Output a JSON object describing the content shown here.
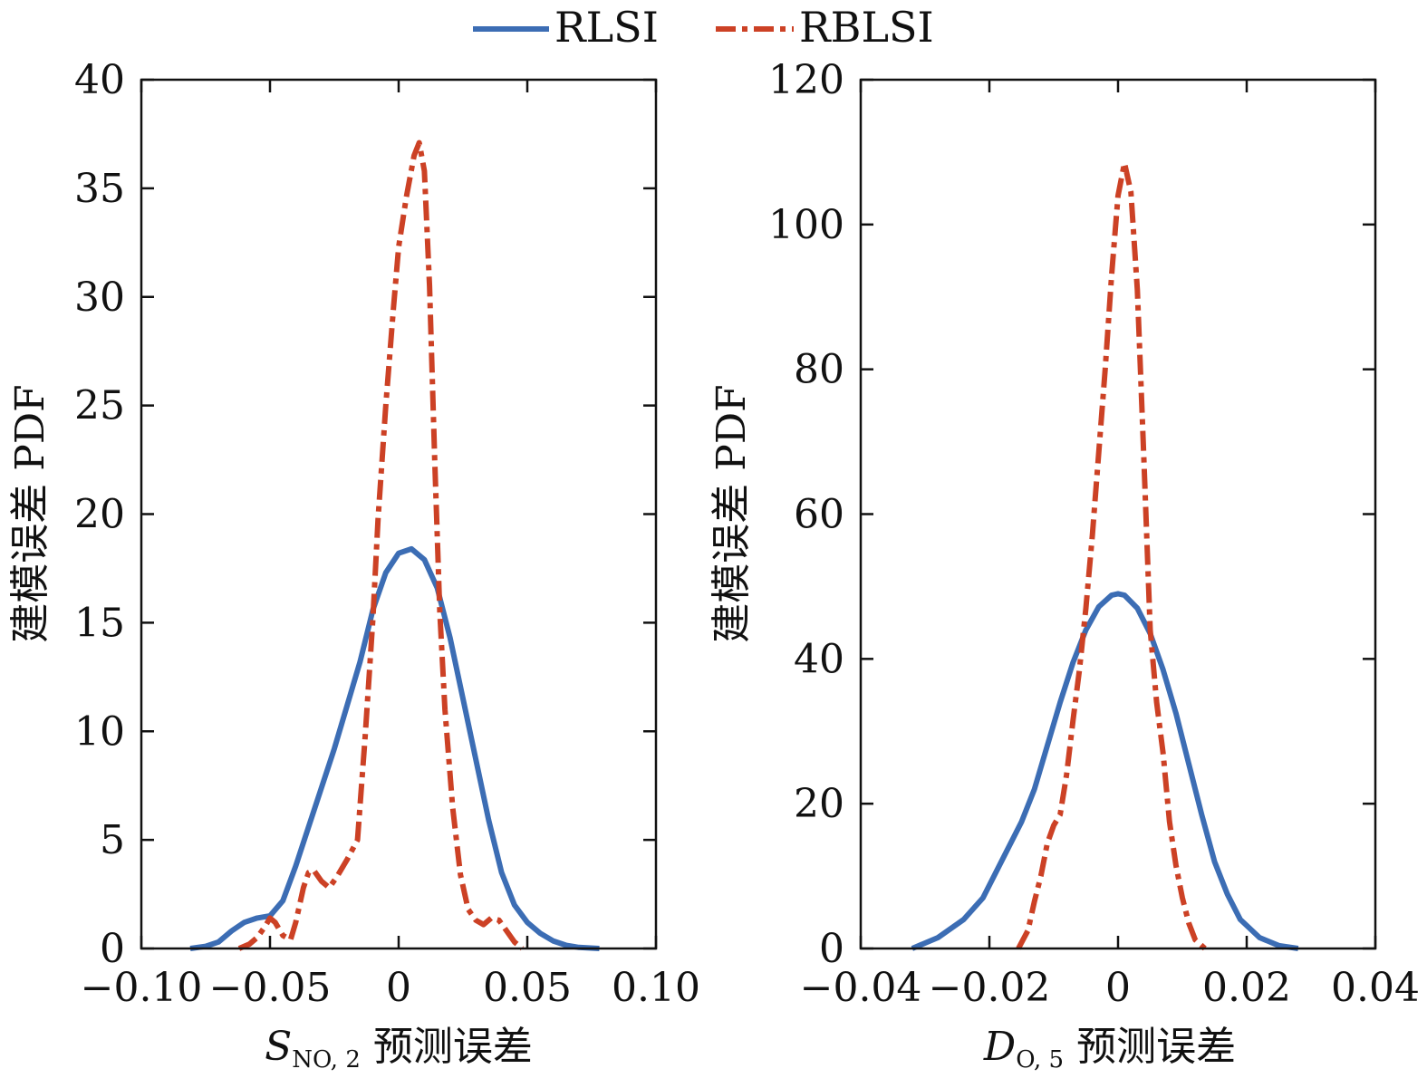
{
  "legend": {
    "items": [
      {
        "name": "RLSI",
        "color": "#3c6db4",
        "style": "solid"
      },
      {
        "name": "RBLSI",
        "color": "#cc4125",
        "style": "dashdot"
      }
    ]
  },
  "colors": {
    "RLSI": "#3c6db4",
    "RBLSI": "#cc4125",
    "axes": "#111111"
  },
  "chart_data": [
    {
      "type": "line",
      "xlabel_var": "S",
      "xlabel_sub": "NO, 2",
      "xlabel_rest": " 预测误差",
      "ylabel": "建模误差 PDF",
      "xlim": [
        -0.1,
        0.1
      ],
      "ylim": [
        0,
        40
      ],
      "xticks": [
        -0.1,
        -0.05,
        0,
        0.05,
        0.1
      ],
      "xtick_labels": [
        "−0.10",
        "−0.05",
        "0",
        "0.05",
        "0.10"
      ],
      "yticks": [
        0,
        5,
        10,
        15,
        20,
        25,
        30,
        35,
        40
      ],
      "ytick_labels": [
        "0",
        "5",
        "10",
        "15",
        "20",
        "25",
        "30",
        "35",
        "40"
      ],
      "series": [
        {
          "name": "RLSI",
          "x": [
            -0.081,
            -0.075,
            -0.07,
            -0.065,
            -0.06,
            -0.055,
            -0.05,
            -0.045,
            -0.04,
            -0.035,
            -0.03,
            -0.025,
            -0.02,
            -0.015,
            -0.01,
            -0.005,
            0,
            0.005,
            0.01,
            0.015,
            0.02,
            0.025,
            0.03,
            0.035,
            0.04,
            0.045,
            0.05,
            0.055,
            0.06,
            0.065,
            0.07,
            0.078
          ],
          "y": [
            0,
            0.1,
            0.3,
            0.8,
            1.2,
            1.4,
            1.5,
            2.2,
            3.8,
            5.6,
            7.4,
            9.2,
            11.2,
            13.2,
            15.6,
            17.3,
            18.2,
            18.4,
            17.9,
            16.6,
            14.3,
            11.5,
            8.7,
            5.9,
            3.5,
            2.0,
            1.2,
            0.7,
            0.35,
            0.15,
            0.05,
            0
          ]
        },
        {
          "name": "RBLSI",
          "x": [
            -0.062,
            -0.058,
            -0.055,
            -0.052,
            -0.05,
            -0.048,
            -0.045,
            -0.042,
            -0.04,
            -0.037,
            -0.035,
            -0.033,
            -0.03,
            -0.027,
            -0.024,
            -0.02,
            -0.016,
            -0.013,
            -0.01,
            -0.008,
            -0.005,
            -0.002,
            0,
            0.003,
            0.006,
            0.008,
            0.01,
            0.012,
            0.014,
            0.016,
            0.018,
            0.021,
            0.024,
            0.027,
            0.03,
            0.033,
            0.036,
            0.039,
            0.042,
            0.045,
            0.048
          ],
          "y": [
            0,
            0.2,
            0.5,
            1.0,
            1.4,
            1.2,
            0.6,
            0.4,
            1.2,
            2.8,
            3.5,
            3.6,
            3.1,
            2.8,
            3.3,
            4.1,
            5.0,
            9.8,
            15.2,
            19.8,
            25.0,
            29.5,
            32.3,
            34.6,
            36.5,
            37.1,
            35.8,
            30.5,
            22.5,
            15.5,
            11.0,
            6.5,
            3.4,
            1.8,
            1.3,
            1.1,
            1.4,
            1.3,
            0.8,
            0.3,
            0
          ]
        }
      ]
    },
    {
      "type": "line",
      "xlabel_var": "D",
      "xlabel_sub": "O, 5",
      "xlabel_rest": " 预测误差",
      "ylabel": "建模误差 PDF",
      "xlim": [
        -0.04,
        0.04
      ],
      "ylim": [
        0,
        120
      ],
      "xticks": [
        -0.04,
        -0.02,
        0,
        0.02,
        0.04
      ],
      "xtick_labels": [
        "−0.04",
        "−0.02",
        "0",
        "0.02",
        "0.04"
      ],
      "yticks": [
        0,
        20,
        40,
        60,
        80,
        100,
        120
      ],
      "ytick_labels": [
        "0",
        "20",
        "40",
        "60",
        "80",
        "100",
        "120"
      ],
      "series": [
        {
          "name": "RLSI",
          "x": [
            -0.032,
            -0.028,
            -0.024,
            -0.021,
            -0.019,
            -0.017,
            -0.015,
            -0.013,
            -0.011,
            -0.009,
            -0.007,
            -0.005,
            -0.003,
            -0.001,
            0,
            0.001,
            0.003,
            0.005,
            0.007,
            0.009,
            0.011,
            0.013,
            0.015,
            0.017,
            0.019,
            0.022,
            0.025,
            0.028
          ],
          "y": [
            0,
            1.5,
            4.0,
            7.0,
            10.5,
            14.0,
            17.5,
            22.0,
            28.0,
            34.0,
            39.5,
            44.0,
            47.2,
            48.8,
            49.0,
            48.8,
            47.0,
            43.5,
            38.5,
            32.5,
            25.5,
            18.5,
            12.0,
            7.5,
            4.0,
            1.5,
            0.4,
            0
          ]
        },
        {
          "name": "RBLSI",
          "x": [
            -0.0155,
            -0.014,
            -0.013,
            -0.012,
            -0.011,
            -0.01,
            -0.009,
            -0.008,
            -0.007,
            -0.006,
            -0.005,
            -0.004,
            -0.003,
            -0.002,
            -0.001,
            0,
            0.001,
            0.002,
            0.003,
            0.004,
            0.005,
            0.006,
            0.007,
            0.008,
            0.009,
            0.01,
            0.011,
            0.012,
            0.0135
          ],
          "y": [
            0,
            2.5,
            6.5,
            10.0,
            14.5,
            17.0,
            18.5,
            24.0,
            31.5,
            38.5,
            47.0,
            57.0,
            68.5,
            80.0,
            93.0,
            104.0,
            108.5,
            104.5,
            91.0,
            68.0,
            44.0,
            34.0,
            27.0,
            17.5,
            11.5,
            7.0,
            3.5,
            1.2,
            0
          ]
        }
      ]
    }
  ]
}
